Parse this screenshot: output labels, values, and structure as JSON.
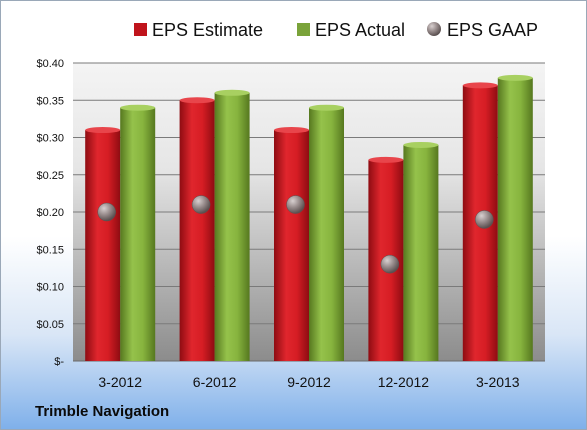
{
  "company": "Trimble Navigation",
  "colors": {
    "estimate": "#c0141c",
    "actual": "#7aa33a",
    "gaap": "#8a7f7f",
    "plot_top": "#f2f2f2",
    "plot_bottom": "#8e8e8e",
    "grid": "#7a7a7a"
  },
  "chart_data": {
    "type": "bar",
    "categories": [
      "3-2012",
      "6-2012",
      "9-2012",
      "12-2012",
      "3-2013"
    ],
    "series": [
      {
        "name": "EPS Estimate",
        "style": "bar",
        "values": [
          0.31,
          0.35,
          0.31,
          0.27,
          0.37
        ]
      },
      {
        "name": "EPS Actual",
        "style": "bar",
        "values": [
          0.34,
          0.36,
          0.34,
          0.29,
          0.38
        ]
      },
      {
        "name": "EPS GAAP",
        "style": "marker",
        "values": [
          0.2,
          0.21,
          0.21,
          0.13,
          0.19
        ]
      }
    ],
    "y_ticks": [
      "$-",
      "$0.05",
      "$0.10",
      "$0.15",
      "$0.20",
      "$0.25",
      "$0.30",
      "$0.35",
      "$0.40"
    ],
    "ylim": [
      0,
      0.4
    ],
    "grid": true,
    "legend_position": "top"
  }
}
